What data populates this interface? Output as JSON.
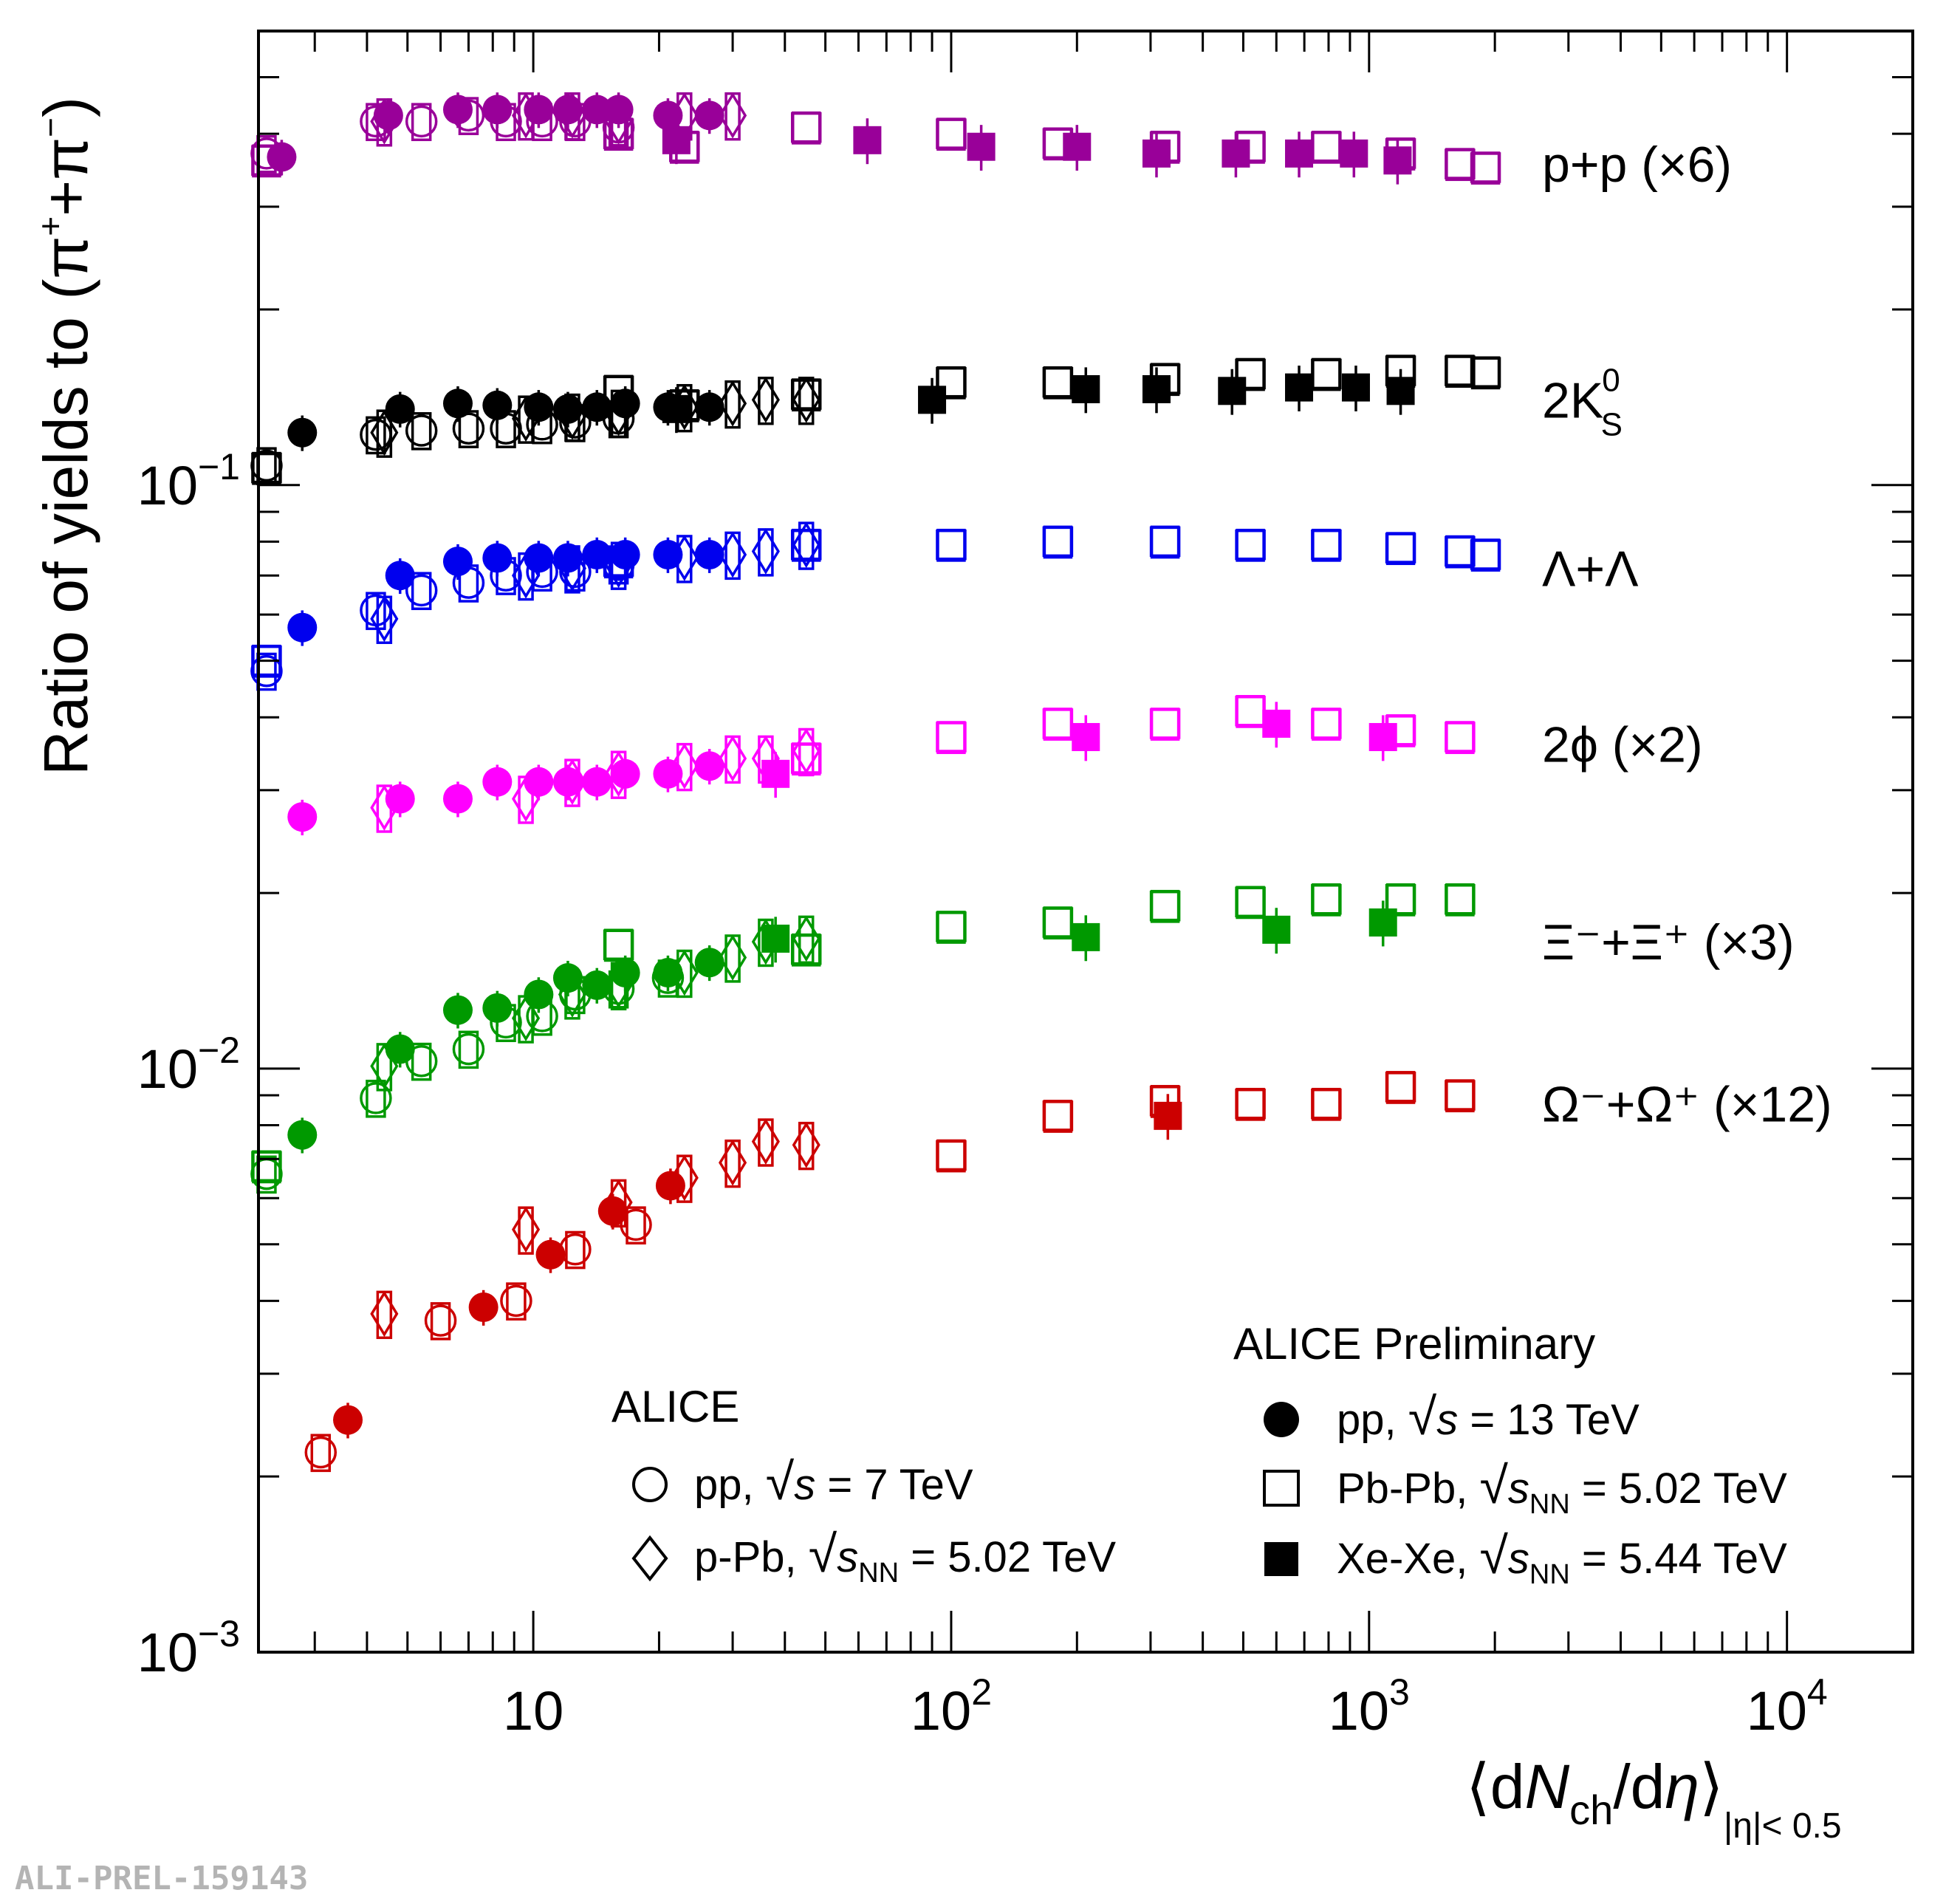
{
  "chart_data": {
    "type": "scatter",
    "title": "",
    "xlabel": "⟨dNch/dη⟩|η|< 0.5",
    "ylabel": "Ratio of yields to (π⁺+π⁻)",
    "xscale": "log",
    "yscale": "log",
    "xlim": [
      2.2,
      20000
    ],
    "ylim": [
      0.001,
      0.6
    ],
    "x_ticks": [
      {
        "v": 10,
        "base": "10",
        "exp": ""
      },
      {
        "v": 100,
        "base": "10",
        "exp": "2"
      },
      {
        "v": 1000,
        "base": "10",
        "exp": "3"
      },
      {
        "v": 10000,
        "base": "10",
        "exp": "4"
      }
    ],
    "y_ticks": [
      {
        "v": 0.1,
        "base": "10",
        "exp": "−1"
      },
      {
        "v": 0.01,
        "base": "10",
        "exp": "−2"
      },
      {
        "v": 0.001,
        "base": "10",
        "exp": "−3"
      }
    ],
    "axis_title_parts": {
      "y_main": "Ratio of yields to (π",
      "y_plus": "+",
      "y_join": "+π",
      "y_minus": "−",
      "y_close": ")",
      "x_open": "⟨d",
      "x_N": "N",
      "x_sub": "ch",
      "x_mid": "/d",
      "x_eta": "η",
      "x_close": "⟩",
      "x_range": "|η|< 0.5"
    },
    "species": [
      {
        "id": "p",
        "label": "p+p (×6)",
        "color": "#990099",
        "pp7": [
          [
            2.3,
            0.37
          ],
          [
            4.2,
            0.42
          ],
          [
            5.4,
            0.42
          ],
          [
            7.0,
            0.43
          ],
          [
            8.6,
            0.42
          ],
          [
            10.5,
            0.42
          ],
          [
            12.6,
            0.42
          ],
          [
            16.0,
            0.41
          ]
        ],
        "pp13": [
          [
            2.5,
            0.365
          ],
          [
            4.5,
            0.43
          ],
          [
            6.6,
            0.44
          ],
          [
            8.2,
            0.44
          ],
          [
            10.3,
            0.44
          ],
          [
            12.1,
            0.44
          ],
          [
            14.2,
            0.44
          ],
          [
            16.0,
            0.44
          ],
          [
            21.0,
            0.43
          ],
          [
            26.4,
            0.43
          ]
        ],
        "pPb": [
          [
            4.4,
            0.42
          ],
          [
            9.6,
            0.43
          ],
          [
            12.4,
            0.43
          ],
          [
            16.0,
            0.42
          ],
          [
            23.0,
            0.43
          ],
          [
            30.0,
            0.43
          ]
        ],
        "PbPb": [
          [
            2.3,
            0.36
          ],
          [
            16.0,
            0.4
          ],
          [
            23.0,
            0.38
          ],
          [
            45.0,
            0.41
          ],
          [
            100.0,
            0.4
          ],
          [
            180.0,
            0.385
          ],
          [
            325.0,
            0.38
          ],
          [
            520.0,
            0.38
          ],
          [
            790.0,
            0.38
          ],
          [
            1190.0,
            0.37
          ],
          [
            1650.0,
            0.355
          ],
          [
            1900.0,
            0.35
          ]
        ],
        "XeXe": [
          [
            22.0,
            0.39
          ],
          [
            63.0,
            0.39
          ],
          [
            118.0,
            0.38
          ],
          [
            200.0,
            0.38
          ],
          [
            310.0,
            0.37
          ],
          [
            480.0,
            0.37
          ],
          [
            680.0,
            0.37
          ],
          [
            920.0,
            0.37
          ],
          [
            1170.0,
            0.36
          ]
        ]
      },
      {
        "id": "k0s",
        "label": "2K",
        "label_sup": "0",
        "label_sub": "S",
        "color": "#000000",
        "pp7": [
          [
            2.3,
            0.108
          ],
          [
            4.2,
            0.122
          ],
          [
            5.4,
            0.124
          ],
          [
            7.0,
            0.125
          ],
          [
            8.6,
            0.125
          ],
          [
            10.5,
            0.127
          ],
          [
            12.6,
            0.128
          ],
          [
            16.0,
            0.13
          ]
        ],
        "pp13": [
          [
            2.8,
            0.123
          ],
          [
            4.8,
            0.135
          ],
          [
            6.6,
            0.138
          ],
          [
            8.2,
            0.137
          ],
          [
            10.3,
            0.136
          ],
          [
            12.1,
            0.135
          ],
          [
            14.2,
            0.136
          ],
          [
            16.6,
            0.138
          ],
          [
            21.0,
            0.136
          ],
          [
            26.4,
            0.136
          ]
        ],
        "pPb": [
          [
            4.4,
            0.123
          ],
          [
            9.6,
            0.13
          ],
          [
            12.4,
            0.131
          ],
          [
            16.0,
            0.133
          ],
          [
            23.0,
            0.136
          ],
          [
            30.0,
            0.138
          ],
          [
            36.0,
            0.14
          ],
          [
            45.0,
            0.14
          ]
        ],
        "PbPb": [
          [
            2.3,
            0.107
          ],
          [
            16.0,
            0.145
          ],
          [
            23.0,
            0.137
          ],
          [
            45.0,
            0.143
          ],
          [
            100.0,
            0.15
          ],
          [
            180.0,
            0.15
          ],
          [
            325.0,
            0.152
          ],
          [
            520.0,
            0.155
          ],
          [
            790.0,
            0.155
          ],
          [
            1190.0,
            0.157
          ],
          [
            1650.0,
            0.157
          ],
          [
            1900.0,
            0.156
          ]
        ],
        "XeXe": [
          [
            22.0,
            0.135
          ],
          [
            90.0,
            0.14
          ],
          [
            210.0,
            0.146
          ],
          [
            310.0,
            0.146
          ],
          [
            470.0,
            0.145
          ],
          [
            680.0,
            0.147
          ],
          [
            930.0,
            0.147
          ],
          [
            1190.0,
            0.145
          ]
        ]
      },
      {
        "id": "lambda",
        "label": "Λ+Λ",
        "color": "#0000ee",
        "pp7": [
          [
            2.3,
            0.048
          ],
          [
            4.2,
            0.061
          ],
          [
            5.4,
            0.066
          ],
          [
            7.0,
            0.068
          ],
          [
            8.6,
            0.07
          ],
          [
            10.5,
            0.071
          ],
          [
            12.6,
            0.071
          ],
          [
            16.0,
            0.073
          ]
        ],
        "pp13": [
          [
            2.8,
            0.057
          ],
          [
            4.8,
            0.07
          ],
          [
            6.6,
            0.074
          ],
          [
            8.2,
            0.075
          ],
          [
            10.3,
            0.075
          ],
          [
            12.1,
            0.075
          ],
          [
            14.2,
            0.076
          ],
          [
            16.6,
            0.076
          ],
          [
            21.0,
            0.076
          ],
          [
            26.4,
            0.076
          ]
        ],
        "pPb": [
          [
            4.4,
            0.059
          ],
          [
            9.6,
            0.07
          ],
          [
            12.4,
            0.072
          ],
          [
            16.0,
            0.073
          ],
          [
            23.0,
            0.075
          ],
          [
            30.0,
            0.076
          ],
          [
            36.0,
            0.077
          ],
          [
            45.0,
            0.079
          ]
        ],
        "PbPb": [
          [
            2.3,
            0.05
          ],
          [
            16.0,
            0.074
          ],
          [
            45.0,
            0.079
          ],
          [
            100.0,
            0.079
          ],
          [
            180.0,
            0.08
          ],
          [
            325.0,
            0.08
          ],
          [
            520.0,
            0.079
          ],
          [
            790.0,
            0.079
          ],
          [
            1190.0,
            0.078
          ],
          [
            1650.0,
            0.077
          ],
          [
            1900.0,
            0.076
          ]
        ],
        "XeXe": []
      },
      {
        "id": "phi",
        "label": "2ϕ (×2)",
        "color": "#ff00ff",
        "pp7": [],
        "pp13": [
          [
            2.8,
            0.027
          ],
          [
            4.8,
            0.029
          ],
          [
            6.6,
            0.029
          ],
          [
            8.2,
            0.031
          ],
          [
            10.3,
            0.031
          ],
          [
            12.1,
            0.031
          ],
          [
            14.2,
            0.031
          ],
          [
            16.6,
            0.032
          ],
          [
            21.0,
            0.032
          ],
          [
            26.4,
            0.033
          ]
        ],
        "pPb": [
          [
            4.4,
            0.028
          ],
          [
            9.6,
            0.029
          ],
          [
            12.4,
            0.031
          ],
          [
            16.0,
            0.032
          ],
          [
            23.0,
            0.033
          ],
          [
            30.0,
            0.034
          ],
          [
            36.0,
            0.034
          ],
          [
            45.0,
            0.035
          ]
        ],
        "PbPb": [
          [
            45.0,
            0.034
          ],
          [
            100.0,
            0.037
          ],
          [
            180.0,
            0.039
          ],
          [
            325.0,
            0.039
          ],
          [
            520.0,
            0.041
          ],
          [
            790.0,
            0.039
          ],
          [
            1190.0,
            0.038
          ],
          [
            1650.0,
            0.037
          ]
        ],
        "XeXe": [
          [
            38.0,
            0.032
          ],
          [
            210.0,
            0.037
          ],
          [
            600.0,
            0.039
          ],
          [
            1080.0,
            0.037
          ]
        ]
      },
      {
        "id": "xi",
        "label": "Ξ⁻+Ξ⁺ (×3)",
        "color": "#009900",
        "pp7": [
          [
            2.3,
            0.0066
          ],
          [
            4.2,
            0.0089
          ],
          [
            5.4,
            0.0103
          ],
          [
            7.0,
            0.0108
          ],
          [
            8.6,
            0.012
          ],
          [
            10.5,
            0.0123
          ],
          [
            12.6,
            0.0134
          ],
          [
            16.0,
            0.0137
          ],
          [
            21.0,
            0.0143
          ]
        ],
        "pp13": [
          [
            2.8,
            0.0077
          ],
          [
            4.8,
            0.0108
          ],
          [
            6.6,
            0.0126
          ],
          [
            8.2,
            0.0127
          ],
          [
            10.3,
            0.0134
          ],
          [
            12.1,
            0.0143
          ],
          [
            14.2,
            0.0139
          ],
          [
            16.6,
            0.0146
          ],
          [
            21.0,
            0.0146
          ],
          [
            26.4,
            0.0152
          ]
        ],
        "pPb": [
          [
            4.4,
            0.0101
          ],
          [
            9.6,
            0.0122
          ],
          [
            12.4,
            0.0134
          ],
          [
            16.0,
            0.0139
          ],
          [
            23.0,
            0.0146
          ],
          [
            30.0,
            0.0155
          ],
          [
            36.0,
            0.0165
          ],
          [
            45.0,
            0.0167
          ]
        ],
        "PbPb": [
          [
            2.3,
            0.0068
          ],
          [
            16.0,
            0.0163
          ],
          [
            45.0,
            0.016
          ],
          [
            100.0,
            0.0175
          ],
          [
            180.0,
            0.0178
          ],
          [
            325.0,
            0.019
          ],
          [
            520.0,
            0.0193
          ],
          [
            790.0,
            0.0195
          ],
          [
            1190.0,
            0.0195
          ],
          [
            1650.0,
            0.0195
          ]
        ],
        "XeXe": [
          [
            38.0,
            0.0167
          ],
          [
            210.0,
            0.0168
          ],
          [
            600.0,
            0.0173
          ],
          [
            1080.0,
            0.0178
          ]
        ]
      },
      {
        "id": "omega",
        "label": "Ω⁻+Ω⁺ (×12)",
        "color": "#cc0000",
        "pp7": [
          [
            3.1,
            0.0022
          ],
          [
            6.0,
            0.0037
          ],
          [
            9.1,
            0.004
          ],
          [
            12.6,
            0.0049
          ],
          [
            17.6,
            0.0054
          ]
        ],
        "pp13": [
          [
            3.6,
            0.0025
          ],
          [
            7.6,
            0.0039
          ],
          [
            11.0,
            0.0048
          ],
          [
            15.5,
            0.0057
          ],
          [
            21.3,
            0.0063
          ]
        ],
        "pPb": [
          [
            4.4,
            0.0038
          ],
          [
            9.6,
            0.0053
          ],
          [
            16.0,
            0.0059
          ],
          [
            23.0,
            0.0065
          ],
          [
            30.0,
            0.0069
          ],
          [
            36.0,
            0.0075
          ],
          [
            45.0,
            0.0074
          ]
        ],
        "PbPb": [
          [
            100.0,
            0.0071
          ],
          [
            180.0,
            0.0083
          ],
          [
            325.0,
            0.0088
          ],
          [
            520.0,
            0.0087
          ],
          [
            790.0,
            0.0087
          ],
          [
            1190.0,
            0.0093
          ],
          [
            1650.0,
            0.009
          ]
        ],
        "XeXe": [
          [
            330.0,
            0.0083
          ]
        ]
      }
    ],
    "legend": {
      "left": {
        "heading": "ALICE",
        "entries": [
          {
            "marker": "open-circle",
            "pre": "pp,",
            "energy": "s",
            "sub": "",
            "value": "= 7 TeV"
          },
          {
            "marker": "open-diamond",
            "pre": "p-Pb,",
            "energy": "s",
            "sub": "NN",
            "value": "= 5.02 TeV"
          }
        ]
      },
      "right": {
        "heading": "ALICE Preliminary",
        "entries": [
          {
            "marker": "filled-circle",
            "pre": "pp,",
            "energy": "s",
            "sub": "",
            "value": "= 13 TeV"
          },
          {
            "marker": "open-square",
            "pre": "Pb-Pb,",
            "energy": "s",
            "sub": "NN",
            "value": "= 5.02 TeV"
          },
          {
            "marker": "filled-square",
            "pre": "Xe-Xe,",
            "energy": "s",
            "sub": "NN",
            "value": "= 5.44 TeV"
          }
        ]
      }
    },
    "watermark": "ALI-PREL-159143"
  }
}
